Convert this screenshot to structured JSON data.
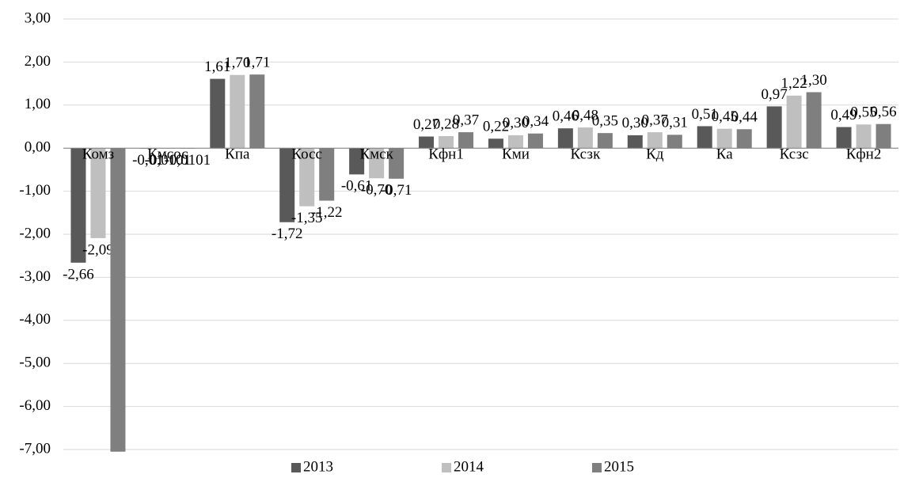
{
  "chart_data": {
    "type": "bar",
    "categories": [
      "Комз",
      "Кмсос",
      "Кпа",
      "Косс",
      "Кмск",
      "Кфн1",
      "Кми",
      "Ксзк",
      "Кд",
      "Ка",
      "Ксзс",
      "Кфн2"
    ],
    "series": [
      {
        "name": "2013",
        "color": "#595959",
        "values": [
          -2.66,
          -0.01,
          1.61,
          -1.72,
          -0.61,
          0.27,
          0.22,
          0.46,
          0.3,
          0.51,
          0.97,
          0.49
        ],
        "value_labels": [
          "-2,66",
          "-0,01",
          "1,61",
          "-1,72",
          "-0,61",
          "0,27",
          "0,22",
          "0,46",
          "0,30",
          "0,51",
          "0,97",
          "0,49"
        ]
      },
      {
        "name": "2014",
        "color": "#bfbfbf",
        "values": [
          -2.09,
          -0.0101,
          1.7,
          -1.35,
          -0.7,
          0.28,
          0.3,
          0.48,
          0.37,
          0.45,
          1.22,
          0.55
        ],
        "value_labels": [
          "-2,09",
          "-0,0101",
          "1,70",
          "-1,35",
          "-0,70",
          "0,28",
          "0,30",
          "0,48",
          "0,37",
          "0,45",
          "1,22",
          "0,55"
        ]
      },
      {
        "name": "2015",
        "color": "#7f7f7f",
        "values": [
          -7.05,
          -0.0101,
          1.71,
          -1.22,
          -0.71,
          0.37,
          0.34,
          0.35,
          0.31,
          0.44,
          1.3,
          0.56
        ],
        "value_labels": [
          null,
          "-0,0101",
          "1,71",
          "-1,22",
          "-0,71",
          "0,37",
          "0,34",
          "0,35",
          "0,31",
          "0,44",
          "1,30",
          "0,56"
        ]
      }
    ],
    "ylim": [
      -7,
      3
    ],
    "yticks": [
      {
        "value": -7,
        "label": "-7,00"
      },
      {
        "value": -6,
        "label": "-6,00"
      },
      {
        "value": -5,
        "label": "-5,00"
      },
      {
        "value": -4,
        "label": "-4,00"
      },
      {
        "value": -3,
        "label": "-3,00"
      },
      {
        "value": -2,
        "label": "-2,00"
      },
      {
        "value": -1,
        "label": "-1,00"
      },
      {
        "value": 0,
        "label": "0,00"
      },
      {
        "value": 1,
        "label": "1,00"
      },
      {
        "value": 2,
        "label": "2,00"
      },
      {
        "value": 3,
        "label": "3,00"
      }
    ],
    "grid": true,
    "legend": "bottom"
  }
}
